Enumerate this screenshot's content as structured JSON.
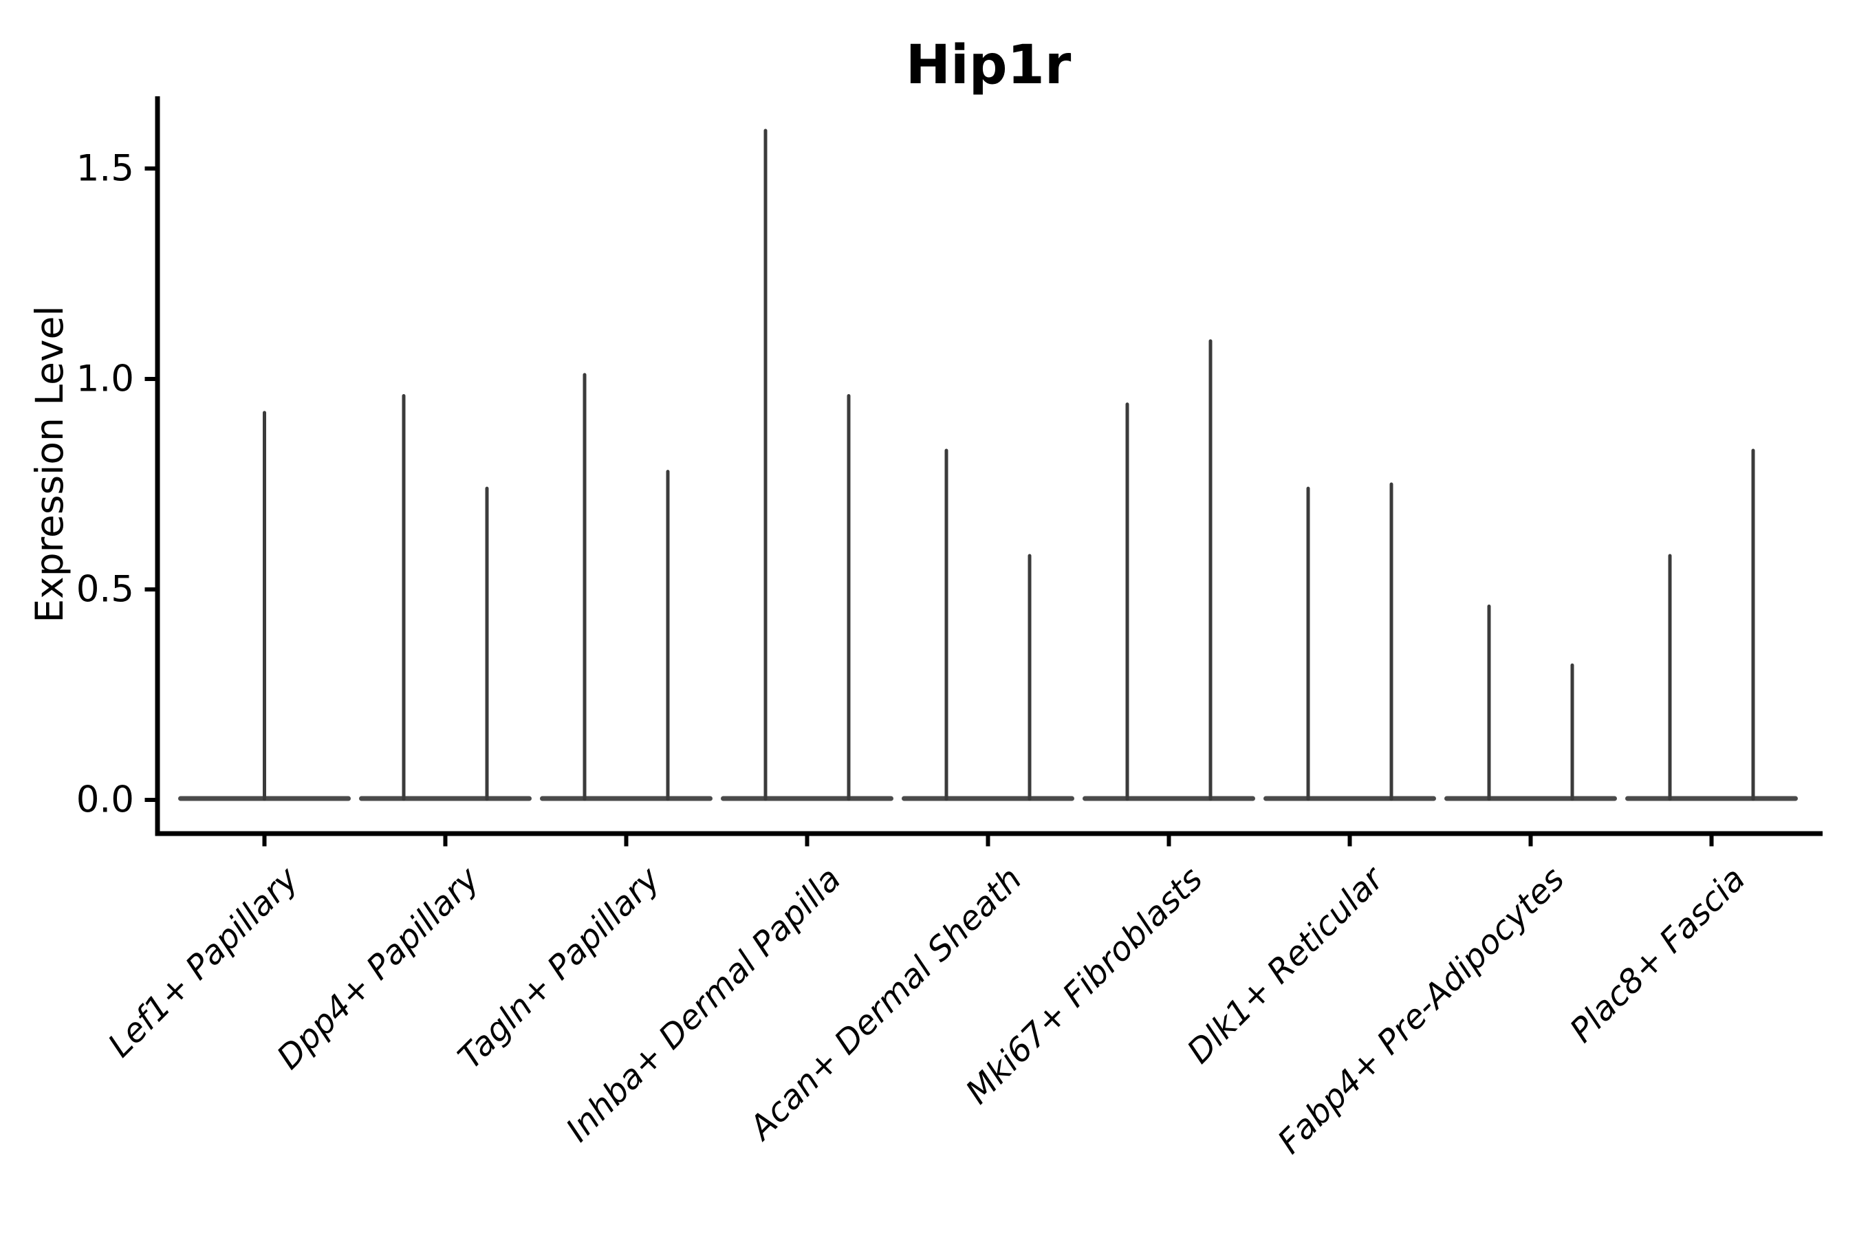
{
  "chart_data": {
    "type": "violin",
    "title": "Hip1r",
    "ylabel": "Expression Level",
    "xlabel": "",
    "legend": null,
    "grid": false,
    "y_ticks": [
      {
        "value": 0.0,
        "label": "0.0"
      },
      {
        "value": 0.5,
        "label": "0.5"
      },
      {
        "value": 1.0,
        "label": "1.0"
      },
      {
        "value": 1.5,
        "label": "1.5"
      }
    ],
    "y_axis_range": [
      -0.08,
      1.67
    ],
    "violins": [
      {
        "category": "Lef1+ Papillary",
        "spike_maxima": [
          0.92
        ]
      },
      {
        "category": "Dpp4+ Papillary",
        "spike_maxima": [
          0.96,
          0.74
        ]
      },
      {
        "category": "Tagln+ Papillary",
        "spike_maxima": [
          1.01,
          0.78
        ]
      },
      {
        "category": "Inhba+ Dermal Papilla",
        "spike_maxima": [
          1.59,
          0.96
        ]
      },
      {
        "category": "Acan+ Dermal Sheath",
        "spike_maxima": [
          0.83,
          0.58
        ]
      },
      {
        "category": "Mki67+ Fibroblasts",
        "spike_maxima": [
          0.94,
          1.09
        ]
      },
      {
        "category": "Dlk1+ Reticular",
        "spike_maxima": [
          0.74,
          0.75
        ]
      },
      {
        "category": "Fabp4+ Pre-Adipocytes",
        "spike_maxima": [
          0.46,
          0.32
        ]
      },
      {
        "category": "Plac8+ Fascia",
        "spike_maxima": [
          0.58,
          0.83
        ]
      }
    ],
    "style": {
      "violin_line_color": "#3b3b3b",
      "violin_baseline_color": "#4a4a4a",
      "axis_color": "#000000",
      "background_color": "#ffffff"
    }
  }
}
